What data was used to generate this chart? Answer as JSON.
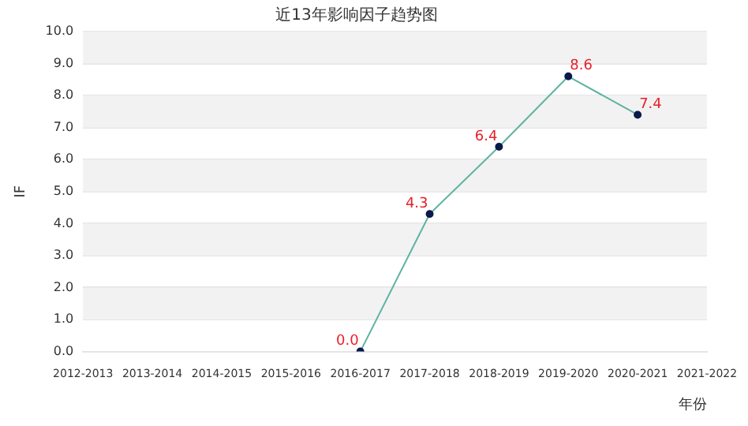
{
  "chart_data": {
    "type": "line",
    "title": "近13年影响因子趋势图",
    "xlabel": "年份",
    "ylabel": "IF",
    "categories": [
      "2012-2013",
      "2013-2014",
      "2014-2015",
      "2015-2016",
      "2016-2017",
      "2017-2018",
      "2018-2019",
      "2019-2020",
      "2020-2021",
      "2021-2022"
    ],
    "series": [
      {
        "color": "#5fb3a0",
        "values": [
          null,
          null,
          null,
          null,
          0,
          4.3,
          6.4,
          8.6,
          7.4,
          null
        ],
        "value_labels": [
          null,
          null,
          null,
          null,
          "0.0",
          "4.3",
          "6.4",
          "8.6",
          "7.4",
          null
        ]
      }
    ],
    "ylim": [
      0,
      10
    ],
    "yticks": [
      {
        "value": 0,
        "label": "0.0"
      },
      {
        "value": 1,
        "label": "1.0"
      },
      {
        "value": 2,
        "label": "2.0"
      },
      {
        "value": 3,
        "label": "3.0"
      },
      {
        "value": 4,
        "label": "4.0"
      },
      {
        "value": 5,
        "label": "5.0"
      },
      {
        "value": 6,
        "label": "6.0"
      },
      {
        "value": 7,
        "label": "7.0"
      },
      {
        "value": 8,
        "label": "8.0"
      },
      {
        "value": 9,
        "label": "9.0"
      },
      {
        "value": 10,
        "label": "10.0"
      }
    ],
    "grid": "y",
    "legend": false,
    "marker": "circle",
    "line_style": "solid"
  }
}
